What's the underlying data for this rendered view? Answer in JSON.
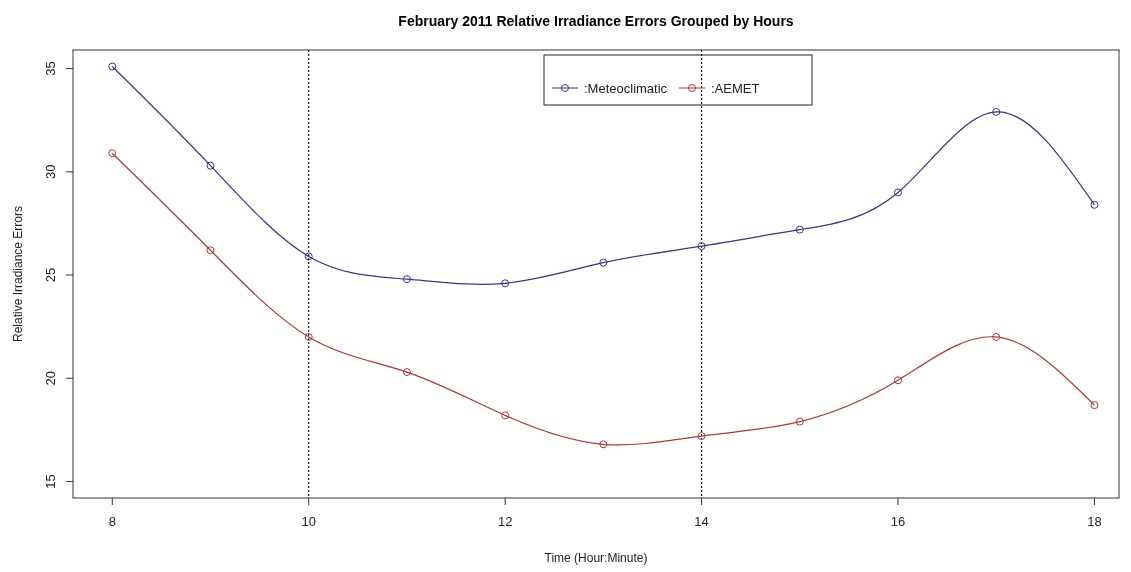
{
  "chart_data": {
    "type": "line",
    "title": "February 2011 Relative Irradiance Errors Grouped by Hours",
    "xlabel": "Time (Hour:Minute)",
    "ylabel": "Relative Irradiance Errors",
    "x": [
      8,
      9,
      10,
      11,
      12,
      13,
      14,
      15,
      16,
      17,
      18
    ],
    "series": [
      {
        "name": ":Meteoclimatic",
        "color": "#35357f",
        "values": [
          35.1,
          30.3,
          25.9,
          24.8,
          24.6,
          25.6,
          26.4,
          27.2,
          29.0,
          32.9,
          28.4
        ]
      },
      {
        "name": ":AEMET",
        "color": "#a53a3a",
        "values": [
          30.9,
          26.2,
          22.0,
          20.3,
          18.2,
          16.8,
          17.2,
          17.9,
          19.9,
          22.0,
          18.7
        ]
      }
    ],
    "xlim": [
      7.6,
      18.25
    ],
    "xticks": [
      8,
      10,
      12,
      14,
      16,
      18
    ],
    "ylim": [
      14.2,
      35.9
    ],
    "yticks": [
      15,
      20,
      25,
      30,
      35
    ],
    "ref_lines": [
      {
        "axis": "x",
        "value": 10,
        "line_style": "dotted",
        "color": "#000000"
      },
      {
        "axis": "x",
        "value": 14,
        "line_style": "dotted",
        "color": "#000000"
      }
    ],
    "legend": "top",
    "marker": "circle",
    "line_style": "solid",
    "grid": false
  }
}
